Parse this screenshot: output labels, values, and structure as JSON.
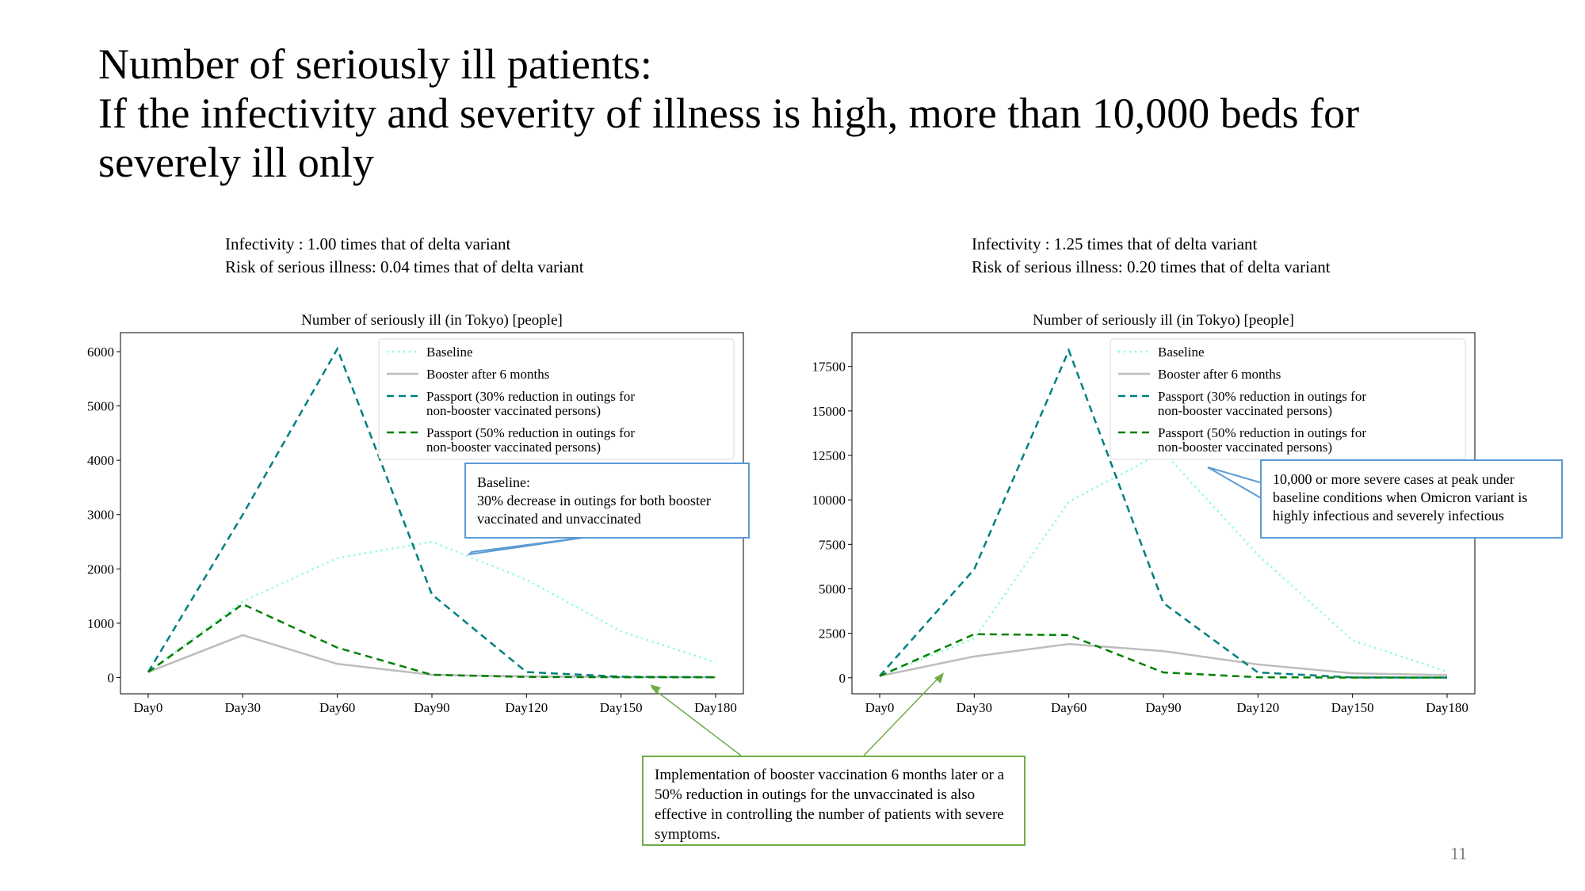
{
  "slide": {
    "title_lines": [
      "Number of seriously ill patients:",
      "If the infectivity and severity of illness is high, more than 10,000 beds for",
      "severely ill only"
    ],
    "page_number": "11"
  },
  "colors": {
    "baseline": "#7fffd4",
    "booster": "#bdbdbd",
    "passport30": "#008080",
    "passport50": "#008000",
    "callout_blue": "#5b9bd5",
    "callout_green": "#70ad47"
  },
  "left": {
    "subtitle_1": "Infectivity : 1.00 times that of delta variant",
    "subtitle_2": "Risk of serious illness: 0.04 times that of delta variant",
    "callout_lines": [
      "Baseline:",
      "30% decrease in outings for both booster vaccinated and unvaccinated"
    ]
  },
  "right": {
    "subtitle_1": "Infectivity : 1.25 times that of delta variant",
    "subtitle_2": "Risk of serious illness: 0.20 times that of delta variant",
    "callout_text": "10,000 or more severe cases at peak under baseline conditions when Omicron variant is highly infectious and severely infectious"
  },
  "bottom_callout": {
    "text": "Implementation of booster vaccination 6 months later or a 50% reduction in outings for the unvaccinated is also effective in controlling the number of patients with severe symptoms."
  },
  "chart_data": [
    {
      "type": "line",
      "title": "Number of seriously ill (in Tokyo) [people]",
      "categories": [
        "Day0",
        "Day30",
        "Day60",
        "Day90",
        "Day120",
        "Day150",
        "Day180"
      ],
      "yticks": [
        0,
        1000,
        2000,
        3000,
        4000,
        5000,
        6000
      ],
      "ylim": [
        -300,
        6350
      ],
      "grid": false,
      "legend_position": "top-right",
      "series": [
        {
          "name": "Baseline",
          "style": "dotted",
          "color": "#7fffd4",
          "values": [
            100,
            1400,
            2200,
            2500,
            1800,
            850,
            280
          ]
        },
        {
          "name": "Booster after 6 months",
          "style": "solid",
          "color": "#bdbdbd",
          "values": [
            100,
            780,
            250,
            50,
            20,
            10,
            5
          ]
        },
        {
          "name": "Passport (30% reduction in outings for non-booster vaccinated persons)",
          "style": "dashed",
          "color": "#008080",
          "values": [
            100,
            3000,
            6050,
            1530,
            100,
            15,
            5
          ]
        },
        {
          "name": "Passport (50% reduction in outings for non-booster vaccinated persons)",
          "style": "dashed",
          "color": "#008000",
          "values": [
            100,
            1350,
            550,
            50,
            10,
            5,
            5
          ]
        }
      ]
    },
    {
      "type": "line",
      "title": "Number of seriously ill (in Tokyo) [people]",
      "categories": [
        "Day0",
        "Day30",
        "Day60",
        "Day90",
        "Day120",
        "Day150",
        "Day180"
      ],
      "yticks": [
        0,
        2500,
        5000,
        7500,
        10000,
        12500,
        15000,
        17500
      ],
      "ylim": [
        -900,
        19400
      ],
      "grid": false,
      "legend_position": "top-right",
      "series": [
        {
          "name": "Baseline",
          "style": "dotted",
          "color": "#7fffd4",
          "values": [
            100,
            2200,
            9900,
            12700,
            6900,
            2100,
            350
          ]
        },
        {
          "name": "Booster after 6 months",
          "style": "solid",
          "color": "#bdbdbd",
          "values": [
            100,
            1200,
            1900,
            1500,
            750,
            250,
            150
          ]
        },
        {
          "name": "Passport (30% reduction in outings for non-booster vaccinated persons)",
          "style": "dashed",
          "color": "#008080",
          "values": [
            100,
            6100,
            18400,
            4200,
            300,
            20,
            10
          ]
        },
        {
          "name": "Passport (50% reduction in outings for non-booster vaccinated persons)",
          "style": "dashed",
          "color": "#008000",
          "values": [
            100,
            2450,
            2400,
            300,
            30,
            10,
            10
          ]
        }
      ]
    }
  ]
}
